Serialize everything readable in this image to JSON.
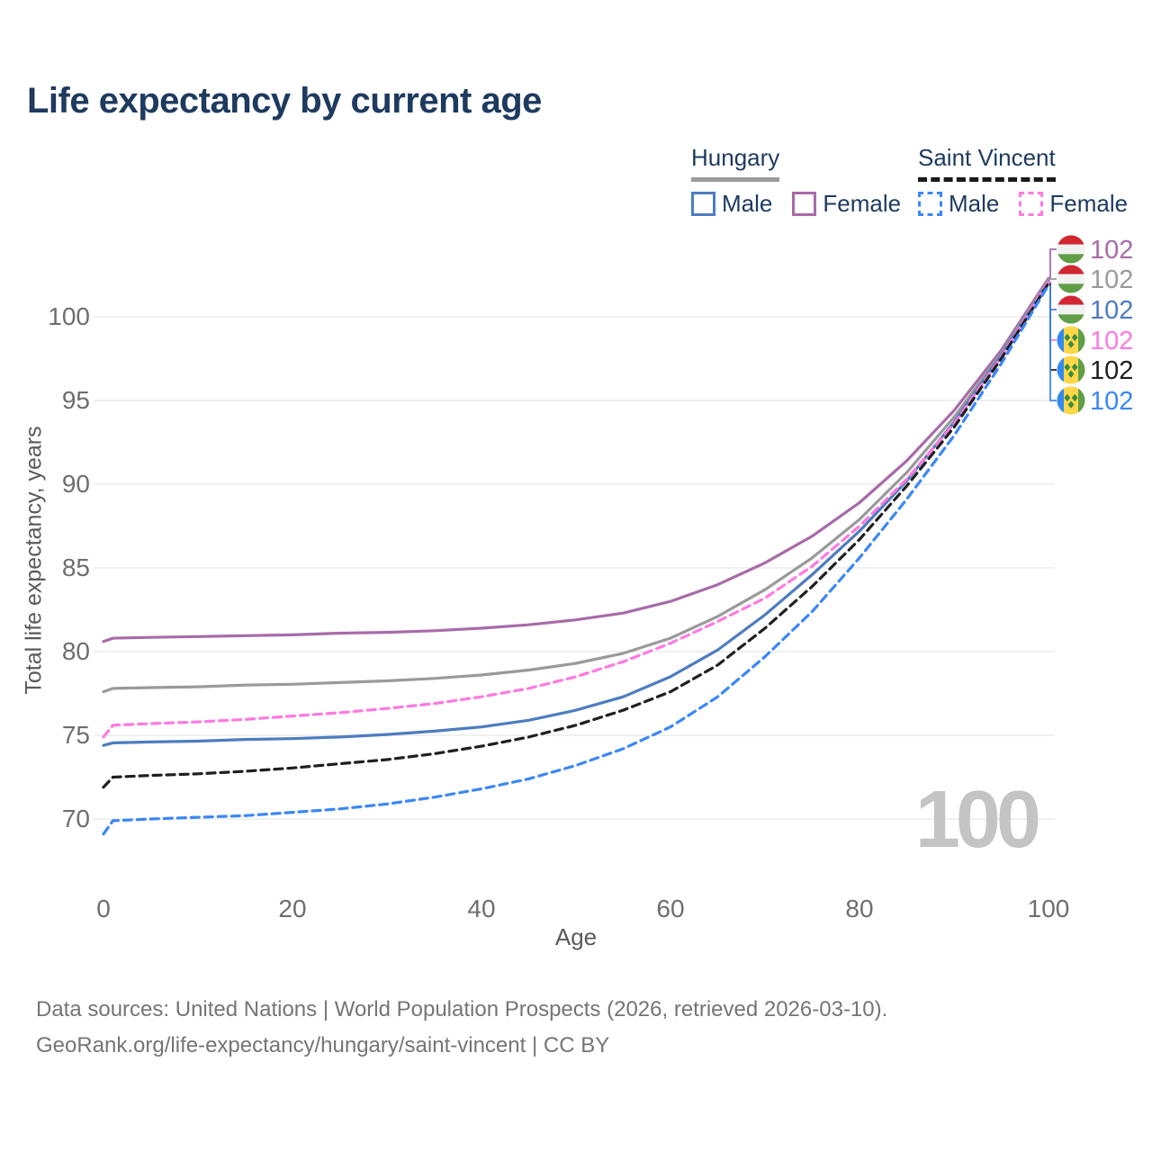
{
  "title": "Life expectancy by current age",
  "legend": {
    "groups": [
      {
        "name": "Hungary",
        "line": "solid",
        "underline_color": "#9a9a9a",
        "items": [
          {
            "label": "Male",
            "color": "#4d7cc0"
          },
          {
            "label": "Female",
            "color": "#a86ba8"
          }
        ]
      },
      {
        "name": "Saint Vincent",
        "line": "dashed",
        "underline_color": "#1a1a1a",
        "items": [
          {
            "label": "Male",
            "color": "#3b87f5"
          },
          {
            "label": "Female",
            "color": "#ff7ae0"
          }
        ]
      }
    ]
  },
  "age_indicator": "100",
  "chart_data": {
    "type": "line",
    "title": "Life expectancy by current age",
    "xlabel": "Age",
    "ylabel": "Total life expectancy, years",
    "xlim": [
      0,
      100
    ],
    "ylim": [
      68.5,
      102.5
    ],
    "xticks": [
      0,
      20,
      40,
      60,
      80,
      100
    ],
    "yticks": [
      70,
      75,
      80,
      85,
      90,
      95,
      100
    ],
    "grid": "horizontal",
    "legend_position": "top-right",
    "x": [
      0,
      1,
      5,
      10,
      15,
      20,
      25,
      30,
      35,
      40,
      45,
      50,
      55,
      60,
      65,
      70,
      75,
      80,
      85,
      90,
      95,
      100
    ],
    "series": [
      {
        "name": "Hungary Female",
        "country": "Hungary",
        "sex": "Female",
        "line": "solid",
        "color": "#a86ba8",
        "flag": "hungary",
        "end_label": "102",
        "values": [
          80.6,
          80.8,
          80.85,
          80.9,
          80.95,
          81.0,
          81.1,
          81.15,
          81.25,
          81.4,
          81.6,
          81.9,
          82.3,
          83.0,
          84.0,
          85.3,
          86.9,
          88.9,
          91.4,
          94.4,
          98.0,
          102.3
        ]
      },
      {
        "name": "Hungary Both sexes",
        "country": "Hungary",
        "sex": "Both sexes",
        "line": "solid",
        "color": "#9a9a9a",
        "flag": "hungary",
        "end_label": "102",
        "values": [
          77.6,
          77.8,
          77.85,
          77.9,
          78.0,
          78.05,
          78.15,
          78.25,
          78.4,
          78.6,
          78.9,
          79.3,
          79.9,
          80.8,
          82.1,
          83.7,
          85.6,
          87.9,
          90.7,
          94.0,
          97.8,
          102.2
        ]
      },
      {
        "name": "Hungary Male",
        "country": "Hungary",
        "sex": "Male",
        "line": "solid",
        "color": "#4d7cc0",
        "flag": "hungary",
        "end_label": "102",
        "values": [
          74.4,
          74.55,
          74.6,
          74.65,
          74.75,
          74.8,
          74.9,
          75.05,
          75.25,
          75.5,
          75.9,
          76.5,
          77.3,
          78.5,
          80.1,
          82.2,
          84.6,
          87.2,
          90.2,
          93.7,
          97.7,
          102.1
        ]
      },
      {
        "name": "Saint Vincent Female",
        "country": "Saint Vincent",
        "sex": "Female",
        "line": "dashed",
        "color": "#ff7ae0",
        "flag": "saint-vincent",
        "end_label": "102",
        "values": [
          74.9,
          75.6,
          75.7,
          75.8,
          75.95,
          76.15,
          76.35,
          76.6,
          76.9,
          77.3,
          77.8,
          78.5,
          79.4,
          80.5,
          81.8,
          83.2,
          85.1,
          87.5,
          90.3,
          93.6,
          97.6,
          102.1
        ]
      },
      {
        "name": "Saint Vincent Both sexes",
        "country": "Saint Vincent",
        "sex": "Both sexes",
        "line": "dashed",
        "color": "#1f1f1f",
        "flag": "saint-vincent",
        "end_label": "102",
        "values": [
          71.9,
          72.5,
          72.6,
          72.7,
          72.85,
          73.05,
          73.3,
          73.55,
          73.9,
          74.35,
          74.9,
          75.6,
          76.5,
          77.6,
          79.2,
          81.4,
          83.9,
          86.7,
          89.9,
          93.4,
          97.5,
          102.0
        ]
      },
      {
        "name": "Saint Vincent Male",
        "country": "Saint Vincent",
        "sex": "Male",
        "line": "dashed",
        "color": "#3b87f5",
        "flag": "saint-vincent",
        "end_label": "102",
        "values": [
          69.1,
          69.9,
          70.0,
          70.1,
          70.2,
          70.4,
          70.6,
          70.9,
          71.3,
          71.8,
          72.4,
          73.2,
          74.2,
          75.5,
          77.3,
          79.7,
          82.4,
          85.6,
          89.1,
          92.9,
          97.2,
          101.9
        ]
      }
    ]
  },
  "footer": {
    "line1": "Data sources: United Nations | World Population Prospects (2026, retrieved 2026-03-10).",
    "line2": "GeoRank.org/life-expectancy/hungary/saint-vincent | CC BY"
  }
}
